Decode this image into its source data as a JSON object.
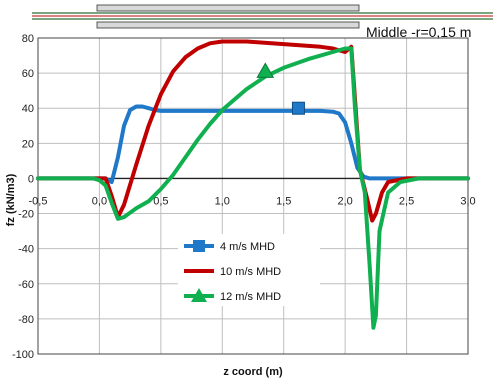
{
  "header_note": "Middle -r=0,15 m",
  "chart_data": {
    "type": "line",
    "title": "",
    "xlabel": "z coord (m)",
    "ylabel": "fz (kN/m3)",
    "xlim": [
      -0.5,
      3.0
    ],
    "ylim": [
      -100,
      80
    ],
    "x_ticks": [
      -0.5,
      0.0,
      0.5,
      1.0,
      1.5,
      2.0,
      2.5,
      3.0
    ],
    "x_tick_labels": [
      "-0,5",
      "0,0",
      "0,5",
      "1,0",
      "1,5",
      "2,0",
      "2,5",
      "3,0"
    ],
    "y_ticks": [
      -100,
      -80,
      -60,
      -40,
      -20,
      0,
      20,
      40,
      60,
      80
    ],
    "y_tick_labels": [
      "-100",
      "-80",
      "-60",
      "-40",
      "-20",
      "0",
      "20",
      "40",
      "60",
      "80"
    ],
    "grid": true,
    "legend_position": "lower-center",
    "colors": {
      "series_1": "#1f78c8",
      "series_2": "#c00000",
      "series_3": "#10b050"
    },
    "series": [
      {
        "name": "4 m/s MHD",
        "color": "#1f78c8",
        "marker": "square",
        "marker_at": [
          1.62,
          40
        ],
        "x": [
          -0.5,
          -0.05,
          0.05,
          0.1,
          0.15,
          0.2,
          0.25,
          0.3,
          0.35,
          0.4,
          0.45,
          0.5,
          0.6,
          0.8,
          1.0,
          1.2,
          1.4,
          1.6,
          1.8,
          1.9,
          1.95,
          2.0,
          2.05,
          2.1,
          2.15,
          2.2,
          2.3,
          2.5,
          3.0
        ],
        "y": [
          0,
          0,
          0,
          -2,
          12,
          30,
          39,
          41,
          41,
          40,
          39,
          38.5,
          38.5,
          38.5,
          38.5,
          38.5,
          38.5,
          38.5,
          38.5,
          38,
          37,
          32,
          20,
          6,
          1,
          0,
          0,
          0,
          0
        ]
      },
      {
        "name": "10 m/s MHD",
        "color": "#c00000",
        "marker": "none",
        "x": [
          -0.5,
          -0.05,
          0.05,
          0.1,
          0.15,
          0.2,
          0.3,
          0.4,
          0.5,
          0.6,
          0.7,
          0.8,
          0.9,
          1.0,
          1.1,
          1.2,
          1.4,
          1.6,
          1.8,
          1.9,
          2.0,
          2.05,
          2.08,
          2.12,
          2.18,
          2.22,
          2.25,
          2.3,
          2.35,
          2.5,
          3.0
        ],
        "y": [
          0,
          0,
          0,
          -10,
          -22,
          -15,
          8,
          30,
          48,
          61,
          69,
          74,
          77,
          78,
          78,
          78,
          77,
          76,
          75,
          74,
          72,
          75,
          45,
          5,
          -12,
          -24,
          -20,
          -8,
          -2,
          0,
          0
        ]
      },
      {
        "name": "12 m/s MHD",
        "color": "#10b050",
        "marker": "triangle",
        "marker_at": [
          1.35,
          61
        ],
        "x": [
          -0.5,
          -0.05,
          0.0,
          0.05,
          0.1,
          0.15,
          0.2,
          0.3,
          0.4,
          0.5,
          0.6,
          0.7,
          0.8,
          0.9,
          1.0,
          1.1,
          1.2,
          1.35,
          1.5,
          1.7,
          1.9,
          2.0,
          2.05,
          2.08,
          2.12,
          2.16,
          2.2,
          2.23,
          2.25,
          2.28,
          2.35,
          2.45,
          2.6,
          3.0
        ],
        "y": [
          0,
          0,
          -1,
          -4,
          -14,
          -23,
          -22,
          -17,
          -13,
          -6,
          2,
          12,
          22,
          31,
          39,
          45,
          51,
          58,
          63,
          68,
          72,
          74,
          74,
          40,
          5,
          -8,
          -50,
          -85,
          -78,
          -30,
          -8,
          -2,
          0,
          0
        ]
      }
    ]
  }
}
